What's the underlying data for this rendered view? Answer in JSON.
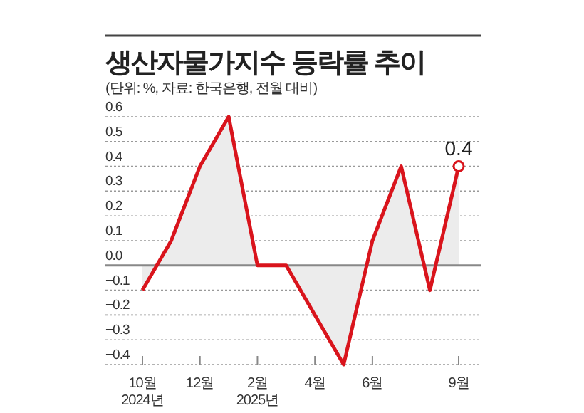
{
  "chart_data": {
    "type": "area",
    "title": "생산자물가지수 등락률 추이",
    "subtitle": "(단위: %, 자료: 한국은행, 전월 대비)",
    "categories": [
      "10월 2024년",
      null,
      "12월",
      null,
      "2월 2025년",
      null,
      "4월",
      null,
      "6월",
      null,
      null,
      "9월"
    ],
    "series": [
      {
        "color": "#d9141c",
        "values": [
          -0.1,
          0.1,
          0.4,
          0.6,
          0,
          0,
          -0.2,
          -0.4,
          0.1,
          0.4,
          -0.1,
          0.4
        ],
        "value_labels": [
          null,
          null,
          null,
          null,
          null,
          null,
          null,
          null,
          null,
          null,
          null,
          "0.4"
        ]
      }
    ],
    "ylim": [
      -0.4,
      0.6
    ],
    "yticks": [
      0.6,
      0.5,
      0.4,
      0.3,
      0.2,
      0.1,
      {
        "value": 0,
        "label": "0.0"
      },
      {
        "value": -0.1,
        "label": "−0.1"
      },
      {
        "value": -0.2,
        "label": "−0.2"
      },
      {
        "value": -0.3,
        "label": "−0.3"
      },
      {
        "value": -0.4,
        "label": "−0.4"
      }
    ],
    "grid": "y"
  }
}
